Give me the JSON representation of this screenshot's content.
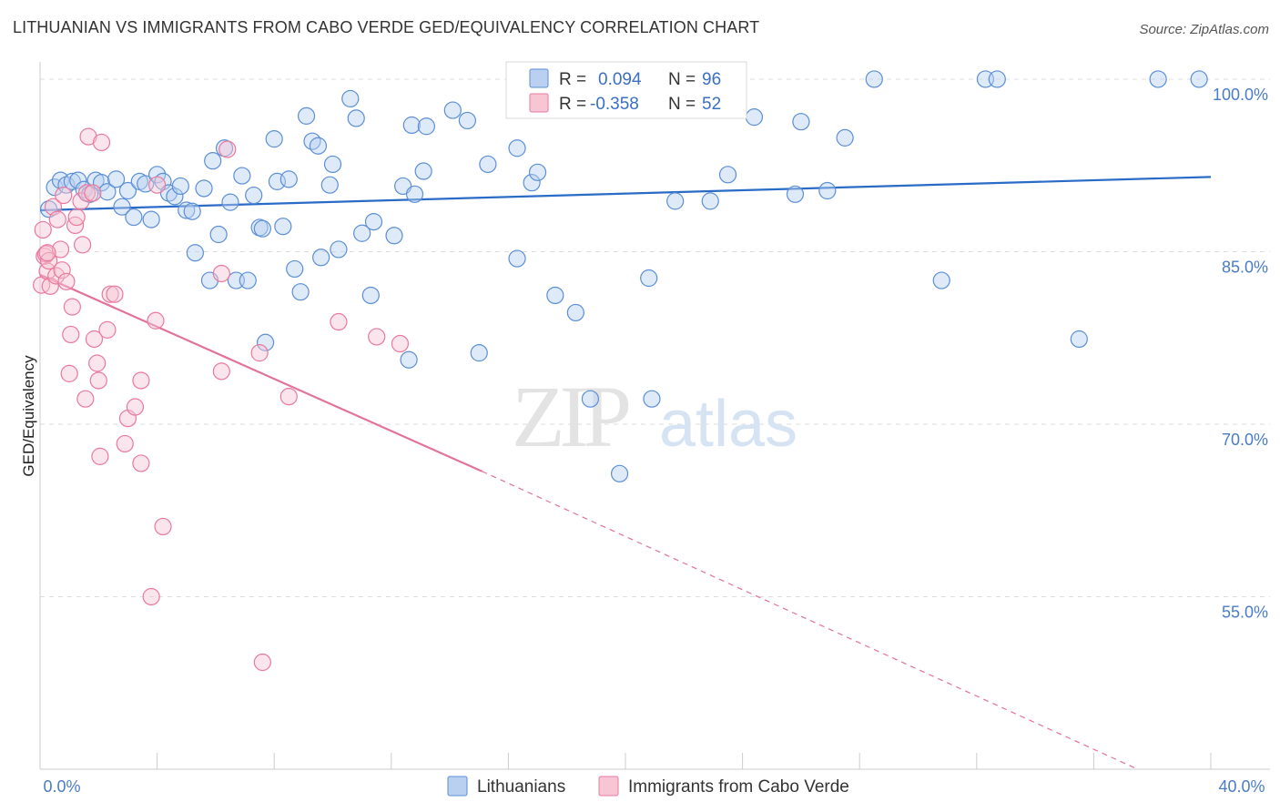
{
  "title": "LITHUANIAN VS IMMIGRANTS FROM CABO VERDE GED/EQUIVALENCY CORRELATION CHART",
  "source": "Source: ZipAtlas.com",
  "watermark": {
    "zip": "ZIP",
    "atlas": "atlas"
  },
  "colors": {
    "blue": "#5b8fd6",
    "blue_fill": "#b9d0f0",
    "blue_line": "#2a6bc7",
    "pink": "#e9799d",
    "pink_fill": "#f7c5d4",
    "pink_line": "#e2739b",
    "tick_label": "#4a7cc9",
    "grid": "#dddddd"
  },
  "legend": {
    "r_label": "R =",
    "n_label": "N =",
    "rows": [
      {
        "r": "0.094",
        "n": "96"
      },
      {
        "r": "-0.358",
        "n": "52"
      }
    ]
  },
  "chart_data": {
    "type": "scatter",
    "title": "LITHUANIAN VS IMMIGRANTS FROM CABO VERDE GED/EQUIVALENCY CORRELATION CHART",
    "xlabel": "",
    "ylabel": "GED/Equivalency",
    "xlim": [
      0,
      40
    ],
    "ylim": [
      40,
      101.5
    ],
    "x_tick_labels": [
      "0.0%",
      "40.0%"
    ],
    "y_ticks": [
      100,
      85,
      70,
      55
    ],
    "y_tick_labels": [
      "100.0%",
      "85.0%",
      "70.0%",
      "55.0%"
    ],
    "grid": true,
    "legend_position": "top-center",
    "series": [
      {
        "name": "Lithuanians",
        "color": "#5b8fd6",
        "r": 0.094,
        "n": 96,
        "trend": {
          "x": [
            0,
            40
          ],
          "y": [
            88.6,
            91.5
          ],
          "style": "solid"
        },
        "points": [
          [
            0.3,
            88.7
          ],
          [
            0.5,
            90.6
          ],
          [
            0.7,
            91.2
          ],
          [
            0.9,
            90.8
          ],
          [
            1.1,
            91.1
          ],
          [
            1.3,
            91.2
          ],
          [
            1.5,
            90.4
          ],
          [
            1.7,
            90.0
          ],
          [
            1.9,
            91.2
          ],
          [
            2.1,
            91.0
          ],
          [
            2.3,
            90.2
          ],
          [
            2.6,
            91.3
          ],
          [
            2.8,
            88.9
          ],
          [
            3.0,
            90.3
          ],
          [
            3.2,
            88.0
          ],
          [
            3.4,
            91.1
          ],
          [
            3.6,
            90.9
          ],
          [
            3.8,
            87.8
          ],
          [
            4.0,
            91.7
          ],
          [
            4.2,
            91.1
          ],
          [
            4.4,
            90.1
          ],
          [
            4.6,
            89.8
          ],
          [
            4.8,
            90.7
          ],
          [
            5.0,
            88.6
          ],
          [
            5.2,
            88.5
          ],
          [
            5.3,
            84.9
          ],
          [
            5.6,
            90.5
          ],
          [
            5.8,
            82.5
          ],
          [
            5.9,
            92.9
          ],
          [
            6.1,
            86.5
          ],
          [
            6.3,
            94.0
          ],
          [
            6.5,
            89.3
          ],
          [
            6.7,
            82.5
          ],
          [
            6.9,
            91.6
          ],
          [
            7.1,
            82.5
          ],
          [
            7.3,
            89.9
          ],
          [
            7.5,
            87.1
          ],
          [
            7.6,
            87.0
          ],
          [
            7.7,
            77.1
          ],
          [
            8.0,
            94.8
          ],
          [
            8.1,
            91.1
          ],
          [
            8.3,
            87.2
          ],
          [
            8.5,
            91.3
          ],
          [
            8.7,
            83.5
          ],
          [
            8.9,
            81.5
          ],
          [
            9.1,
            96.8
          ],
          [
            9.3,
            94.6
          ],
          [
            9.5,
            94.2
          ],
          [
            9.6,
            84.5
          ],
          [
            9.9,
            90.8
          ],
          [
            10.0,
            92.6
          ],
          [
            10.2,
            85.2
          ],
          [
            10.6,
            98.3
          ],
          [
            10.8,
            96.6
          ],
          [
            11.0,
            86.6
          ],
          [
            11.3,
            81.2
          ],
          [
            11.4,
            87.6
          ],
          [
            12.1,
            86.4
          ],
          [
            12.4,
            90.7
          ],
          [
            12.6,
            75.6
          ],
          [
            12.7,
            96.0
          ],
          [
            12.8,
            90.0
          ],
          [
            13.1,
            92.0
          ],
          [
            13.2,
            95.9
          ],
          [
            14.1,
            97.3
          ],
          [
            14.6,
            96.4
          ],
          [
            15.0,
            76.2
          ],
          [
            15.3,
            92.6
          ],
          [
            16.3,
            84.4
          ],
          [
            16.3,
            94.0
          ],
          [
            16.8,
            91.0
          ],
          [
            17.0,
            91.9
          ],
          [
            17.6,
            81.2
          ],
          [
            18.3,
            79.7
          ],
          [
            18.8,
            72.2
          ],
          [
            19.3,
            100.0
          ],
          [
            19.8,
            65.7
          ],
          [
            20.8,
            82.7
          ],
          [
            20.9,
            72.2
          ],
          [
            21.7,
            89.4
          ],
          [
            22.8,
            98.0
          ],
          [
            22.9,
            89.4
          ],
          [
            23.5,
            91.7
          ],
          [
            23.7,
            100.0
          ],
          [
            24.4,
            96.7
          ],
          [
            25.8,
            90.0
          ],
          [
            26.0,
            96.3
          ],
          [
            26.9,
            90.3
          ],
          [
            27.5,
            94.9
          ],
          [
            28.5,
            100.0
          ],
          [
            30.8,
            82.5
          ],
          [
            32.3,
            100.0
          ],
          [
            32.7,
            100.0
          ],
          [
            35.5,
            77.4
          ],
          [
            38.2,
            100.0
          ],
          [
            39.6,
            100.0
          ]
        ]
      },
      {
        "name": "Immigrants from Cabo Verde",
        "color": "#e9799d",
        "r": -0.358,
        "n": 52,
        "trend": {
          "x": [
            0,
            15.1,
            37.5
          ],
          "y": [
            83.0,
            65.9,
            40.0
          ],
          "style": "solid-then-dashed"
        },
        "points": [
          [
            0.05,
            82.1
          ],
          [
            0.1,
            86.9
          ],
          [
            0.15,
            84.6
          ],
          [
            0.2,
            84.8
          ],
          [
            0.25,
            83.3
          ],
          [
            0.3,
            84.2
          ],
          [
            0.35,
            82.0
          ],
          [
            0.45,
            88.9
          ],
          [
            0.55,
            82.9
          ],
          [
            0.6,
            87.8
          ],
          [
            0.7,
            85.2
          ],
          [
            0.75,
            83.4
          ],
          [
            0.8,
            89.9
          ],
          [
            0.9,
            82.4
          ],
          [
            1.0,
            74.4
          ],
          [
            1.05,
            77.8
          ],
          [
            1.1,
            80.2
          ],
          [
            1.2,
            87.3
          ],
          [
            1.25,
            88.0
          ],
          [
            1.4,
            89.4
          ],
          [
            1.45,
            85.6
          ],
          [
            1.55,
            72.2
          ],
          [
            1.6,
            90.1
          ],
          [
            1.65,
            95.0
          ],
          [
            1.8,
            90.1
          ],
          [
            1.85,
            77.4
          ],
          [
            1.95,
            75.3
          ],
          [
            2.0,
            73.8
          ],
          [
            2.05,
            67.2
          ],
          [
            2.1,
            94.5
          ],
          [
            2.3,
            78.2
          ],
          [
            2.4,
            81.3
          ],
          [
            2.55,
            81.3
          ],
          [
            2.9,
            68.3
          ],
          [
            3.0,
            70.5
          ],
          [
            3.25,
            71.5
          ],
          [
            3.45,
            73.8
          ],
          [
            3.45,
            66.6
          ],
          [
            3.8,
            55.0
          ],
          [
            3.95,
            79.0
          ],
          [
            4.0,
            90.8
          ],
          [
            4.2,
            61.1
          ],
          [
            6.2,
            74.6
          ],
          [
            6.2,
            83.1
          ],
          [
            6.4,
            93.9
          ],
          [
            7.5,
            76.2
          ],
          [
            7.6,
            49.3
          ],
          [
            8.5,
            72.4
          ],
          [
            10.2,
            78.9
          ],
          [
            11.5,
            77.6
          ],
          [
            12.3,
            77.0
          ],
          [
            0.25,
            84.9
          ]
        ]
      }
    ]
  }
}
